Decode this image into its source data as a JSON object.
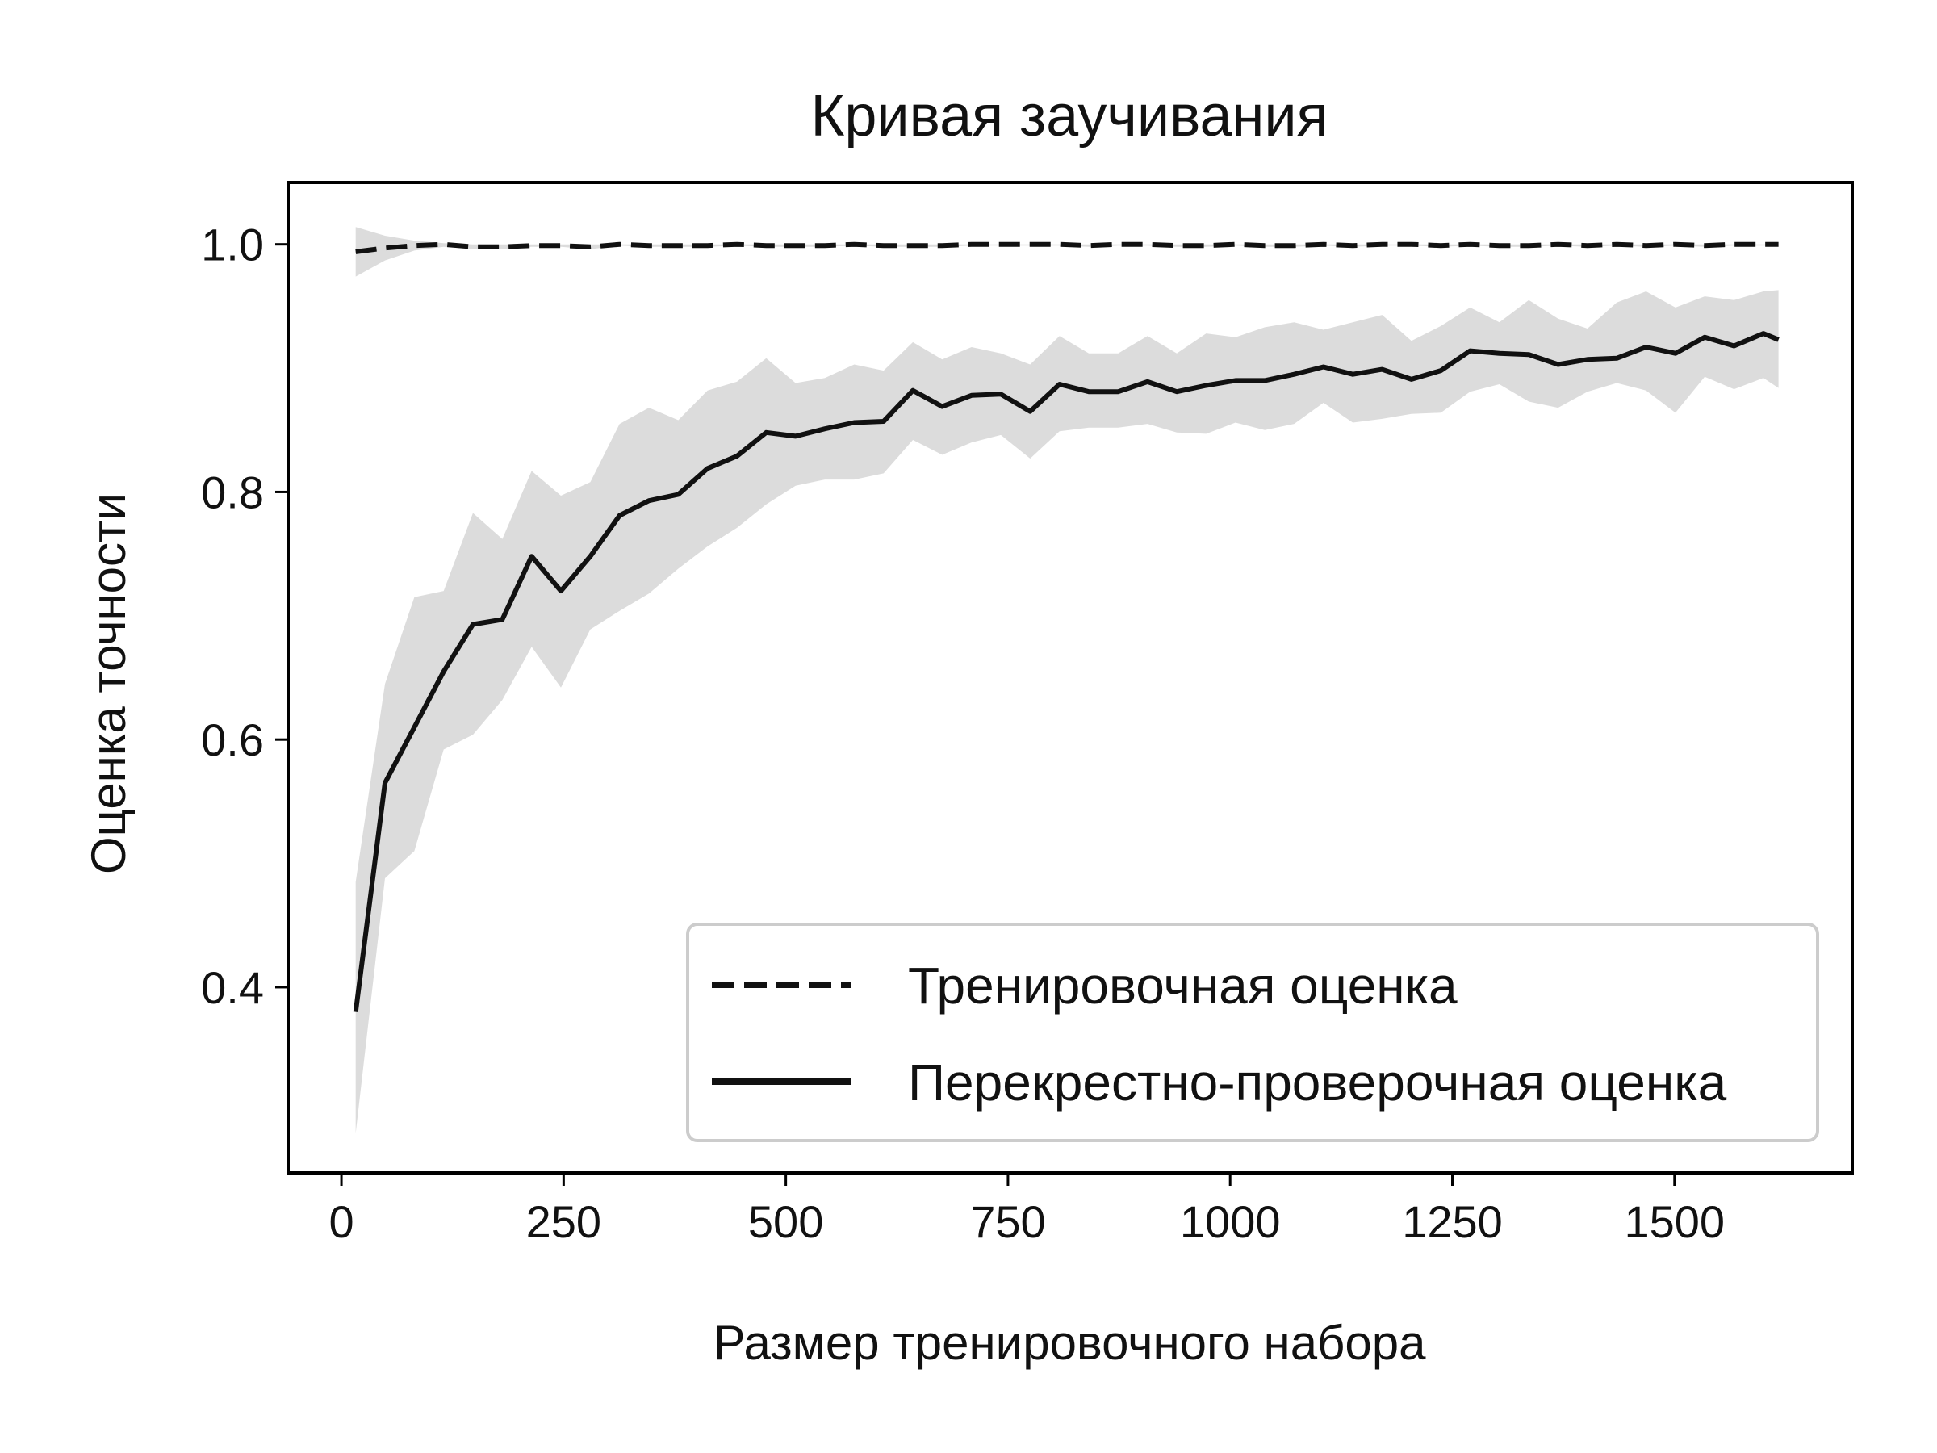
{
  "chart_data": {
    "type": "line",
    "title": "Кривая заучивания",
    "xlabel": "Размер тренировочного набора",
    "ylabel": "Оценка точности",
    "xlim": [
      -60,
      1700
    ],
    "ylim": [
      0.25,
      1.05
    ],
    "xticks": [
      0,
      250,
      500,
      750,
      1000,
      1250,
      1500
    ],
    "yticks": [
      0.4,
      0.6,
      0.8,
      1.0
    ],
    "xtick_labels": [
      "0",
      "250",
      "500",
      "750",
      "1000",
      "1250",
      "1500"
    ],
    "ytick_labels": [
      "0.4",
      "0.6",
      "0.8",
      "1.0"
    ],
    "grid": false,
    "legend_position": "lower-right",
    "colors": {
      "line": "#111111",
      "band": "#dcdcdc",
      "frame": "#000000",
      "legend_border": "#cccccc"
    },
    "x": [
      16,
      49,
      82,
      115,
      148,
      181,
      214,
      247,
      280,
      313,
      346,
      379,
      412,
      445,
      478,
      511,
      544,
      577,
      610,
      643,
      676,
      709,
      742,
      775,
      808,
      841,
      874,
      907,
      940,
      973,
      1006,
      1039,
      1072,
      1105,
      1138,
      1171,
      1204,
      1237,
      1270,
      1303,
      1336,
      1369,
      1402,
      1435,
      1468,
      1501,
      1534,
      1567,
      1600,
      1617
    ],
    "series": [
      {
        "name": "Тренировочная оценка",
        "style": "dashed",
        "values": [
          0.994,
          0.997,
          0.999,
          1.0,
          0.998,
          0.998,
          0.999,
          0.999,
          0.998,
          1.0,
          0.999,
          0.999,
          0.999,
          1.0,
          0.999,
          0.999,
          0.999,
          1.0,
          0.999,
          0.999,
          0.999,
          1.0,
          1.0,
          1.0,
          1.0,
          0.999,
          1.0,
          1.0,
          0.999,
          0.999,
          1.0,
          0.999,
          0.999,
          1.0,
          0.999,
          1.0,
          1.0,
          0.999,
          1.0,
          0.999,
          0.999,
          1.0,
          0.999,
          1.0,
          0.999,
          1.0,
          0.999,
          1.0,
          1.0,
          1.0
        ],
        "band_upper": [
          1.014,
          1.007,
          1.003,
          1.001,
          1.0,
          1.0,
          1.0,
          1.0,
          1.0,
          1.0,
          1.0,
          1.0,
          1.0,
          1.0,
          1.0,
          1.0,
          1.0,
          1.0,
          1.0,
          1.0,
          1.0,
          1.0,
          1.0,
          1.0,
          1.0,
          1.0,
          1.0,
          1.0,
          1.0,
          1.0,
          1.0,
          1.0,
          1.0,
          1.0,
          1.0,
          1.0,
          1.0,
          1.0,
          1.0,
          1.0,
          1.0,
          1.0,
          1.0,
          1.0,
          1.0,
          1.0,
          1.0,
          1.0,
          1.0,
          1.0
        ],
        "band_lower": [
          0.974,
          0.987,
          0.995,
          0.998,
          0.996,
          0.996,
          0.998,
          0.998,
          0.996,
          0.999,
          0.998,
          0.998,
          0.998,
          0.999,
          0.998,
          0.998,
          0.998,
          0.999,
          0.998,
          0.998,
          0.998,
          0.999,
          0.999,
          0.999,
          0.999,
          0.998,
          0.999,
          0.999,
          0.998,
          0.998,
          0.999,
          0.998,
          0.998,
          0.999,
          0.998,
          0.999,
          0.999,
          0.998,
          0.999,
          0.998,
          0.998,
          0.999,
          0.998,
          0.999,
          0.998,
          0.999,
          0.998,
          0.999,
          0.999,
          0.999
        ]
      },
      {
        "name": "Перекрестно-проверочная оценка",
        "style": "solid",
        "values": [
          0.38,
          0.565,
          0.61,
          0.655,
          0.693,
          0.697,
          0.748,
          0.72,
          0.748,
          0.781,
          0.793,
          0.798,
          0.819,
          0.829,
          0.848,
          0.845,
          0.851,
          0.856,
          0.857,
          0.882,
          0.869,
          0.878,
          0.879,
          0.865,
          0.887,
          0.881,
          0.881,
          0.889,
          0.881,
          0.886,
          0.89,
          0.89,
          0.895,
          0.901,
          0.895,
          0.899,
          0.891,
          0.898,
          0.914,
          0.912,
          0.911,
          0.903,
          0.907,
          0.908,
          0.917,
          0.912,
          0.925,
          0.918,
          0.928,
          0.923
        ],
        "band_upper": [
          0.485,
          0.645,
          0.715,
          0.72,
          0.783,
          0.762,
          0.817,
          0.797,
          0.808,
          0.855,
          0.868,
          0.858,
          0.882,
          0.889,
          0.908,
          0.888,
          0.892,
          0.903,
          0.898,
          0.921,
          0.907,
          0.917,
          0.912,
          0.903,
          0.926,
          0.912,
          0.912,
          0.926,
          0.912,
          0.928,
          0.925,
          0.933,
          0.937,
          0.931,
          0.937,
          0.943,
          0.922,
          0.934,
          0.949,
          0.937,
          0.955,
          0.94,
          0.932,
          0.953,
          0.962,
          0.949,
          0.958,
          0.955,
          0.962,
          0.963
        ],
        "band_lower": [
          0.282,
          0.488,
          0.51,
          0.592,
          0.604,
          0.632,
          0.675,
          0.642,
          0.689,
          0.704,
          0.718,
          0.738,
          0.756,
          0.771,
          0.79,
          0.805,
          0.81,
          0.81,
          0.815,
          0.842,
          0.83,
          0.84,
          0.846,
          0.827,
          0.849,
          0.852,
          0.852,
          0.855,
          0.848,
          0.847,
          0.856,
          0.85,
          0.855,
          0.872,
          0.856,
          0.859,
          0.863,
          0.864,
          0.881,
          0.887,
          0.873,
          0.868,
          0.881,
          0.888,
          0.882,
          0.864,
          0.893,
          0.883,
          0.892,
          0.884
        ]
      }
    ]
  }
}
